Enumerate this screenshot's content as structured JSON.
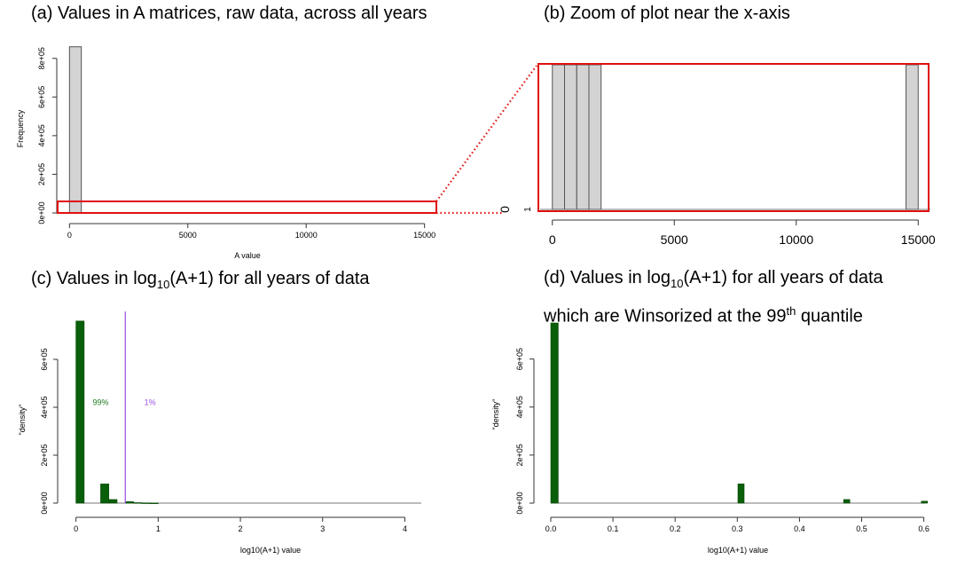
{
  "panels": {
    "a": {
      "title": "(a) Values in A matrices, raw data, across all years"
    },
    "b": {
      "title": "(b) Zoom of plot near the x-axis"
    },
    "c": {
      "title_pre": "(c) Values in log",
      "title_sub": "10",
      "title_post": "(A+1) for all years of data"
    },
    "d": {
      "line1_pre": "(d) Values in log",
      "line1_sub": "10",
      "line1_post": "(A+1) for all years of data",
      "line2_pre": "which are Winsorized at the 99",
      "line2_sup": "th",
      "line2_post": " quantile"
    }
  },
  "colors": {
    "hist_fill": "#d3d3d3",
    "log_bars": "#0a5f0a",
    "zoom_box": "#e01010",
    "cut_line": "#9b4de0",
    "pct_99": "#1c7a1c"
  },
  "chart_data": [
    {
      "id": "a",
      "type": "bar",
      "title": "(a) Values in A matrices, raw data, across all years",
      "xlabel": "A value",
      "ylabel": "Frequency",
      "xlim": [
        -500,
        15500
      ],
      "ylim": [
        0,
        900000
      ],
      "xticks": [
        0,
        5000,
        10000,
        15000
      ],
      "xtick_labels": [
        "0",
        "5000",
        "10000",
        "15000"
      ],
      "yticks": [
        0,
        200000,
        400000,
        600000,
        800000
      ],
      "ytick_labels": [
        "0e+00",
        "2e+05",
        "4e+05",
        "6e+05",
        "8e+05"
      ],
      "bins": [
        {
          "from": 0,
          "to": 500,
          "count": 860000
        }
      ],
      "zoom_region": {
        "x": [
          -500,
          15500
        ],
        "y": [
          0,
          60000
        ]
      }
    },
    {
      "id": "b",
      "type": "bar",
      "title": "(b) Zoom of plot near the x-axis",
      "xlim": [
        -500,
        15500
      ],
      "ylim": [
        0,
        1.2
      ],
      "xticks": [
        0,
        5000,
        10000,
        15000
      ],
      "xtick_labels": [
        "0",
        "5000",
        "10000",
        "15000"
      ],
      "yticks": [
        0,
        1
      ],
      "ytick_labels": [
        "0",
        "1"
      ],
      "bins": [
        {
          "from": 0,
          "to": 500,
          "count": 1.2
        },
        {
          "from": 500,
          "to": 1000,
          "count": 1.2
        },
        {
          "from": 1000,
          "to": 1500,
          "count": 1.2
        },
        {
          "from": 1500,
          "to": 2000,
          "count": 1.2
        },
        {
          "from": 14500,
          "to": 15000,
          "count": 1.2
        }
      ]
    },
    {
      "id": "c",
      "type": "bar",
      "title": "(c) Values in log10(A+1) for all years of data",
      "xlabel": "log10(A+1) value",
      "ylabel": "\"density\"",
      "xlim": [
        -0.05,
        4.2
      ],
      "ylim": [
        0,
        800000
      ],
      "xticks": [
        0,
        1,
        2,
        3,
        4
      ],
      "xtick_labels": [
        "0",
        "1",
        "2",
        "3",
        "4"
      ],
      "yticks": [
        0,
        200000,
        400000,
        600000
      ],
      "ytick_labels": [
        "0e+00",
        "2e+05",
        "4e+05",
        "6e+05"
      ],
      "bin_width": 0.1,
      "bins": [
        {
          "from": 0.0,
          "count": 760000
        },
        {
          "from": 0.3,
          "count": 80000
        },
        {
          "from": 0.4,
          "count": 15000
        },
        {
          "from": 0.6,
          "count": 6000
        },
        {
          "from": 0.7,
          "count": 2000
        },
        {
          "from": 0.8,
          "count": 1000
        },
        {
          "from": 0.9,
          "count": 500
        }
      ],
      "cutoff_x": 0.6,
      "annotations": [
        {
          "text": "99%",
          "x": 0.3,
          "y": 410000,
          "color": "#1c7a1c"
        },
        {
          "text": "1%",
          "x": 0.9,
          "y": 410000,
          "color": "#9b4de0"
        }
      ]
    },
    {
      "id": "d",
      "type": "bar",
      "title": "(d) Values in log10(A+1) for all years of data which are Winsorized at the 99th quantile",
      "xlabel": "log10(A+1) value",
      "ylabel": "\"density\"",
      "xlim": [
        0,
        0.602
      ],
      "ylim": [
        0,
        750000
      ],
      "xticks": [
        0,
        0.1,
        0.2,
        0.3,
        0.4,
        0.5,
        0.6
      ],
      "xtick_labels": [
        "0.0",
        "0.1",
        "0.2",
        "0.3",
        "0.4",
        "0.5",
        "0.6"
      ],
      "yticks": [
        0,
        200000,
        400000,
        600000
      ],
      "ytick_labels": [
        "0e+00",
        "2e+05",
        "4e+05",
        "6e+05"
      ],
      "bins": [
        {
          "from": 0.0,
          "to": 0.012,
          "count": 750000
        },
        {
          "from": 0.301,
          "to": 0.311,
          "count": 80000
        },
        {
          "from": 0.471,
          "to": 0.481,
          "count": 15000
        },
        {
          "from": 0.596,
          "to": 0.606,
          "count": 8000
        }
      ]
    }
  ]
}
